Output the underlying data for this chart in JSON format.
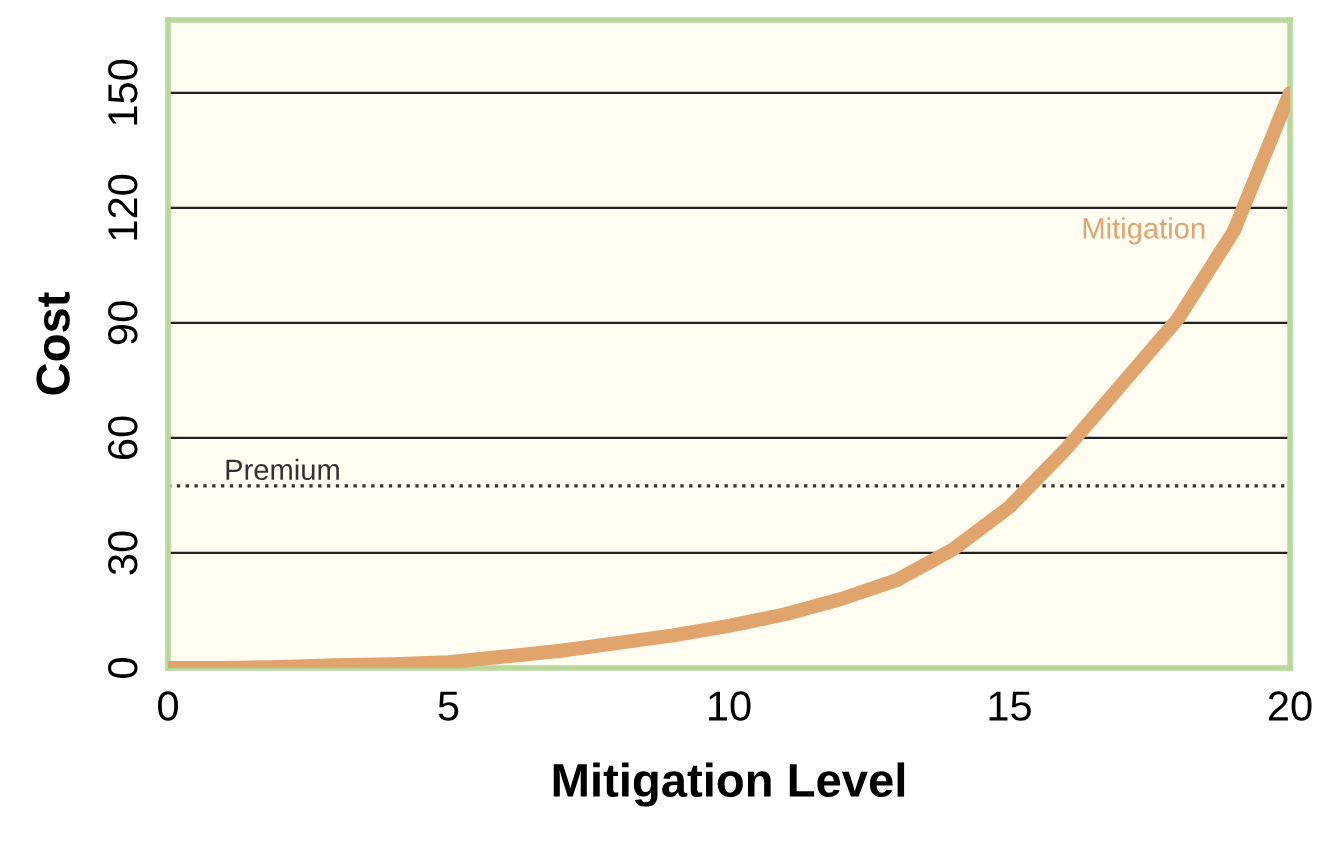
{
  "chart_data": {
    "type": "line",
    "xlabel": "Mitigation Level",
    "ylabel": "Cost",
    "x": [
      0,
      1,
      2,
      3,
      4,
      5,
      6,
      7,
      8,
      9,
      10,
      11,
      12,
      13,
      14,
      15,
      16,
      17,
      18,
      19,
      20
    ],
    "series": [
      {
        "name": "Mitigation",
        "color": "#e0a46c",
        "values": [
          0,
          0,
          0.3,
          0.7,
          1,
          1.5,
          3,
          4.5,
          6.5,
          8.5,
          11,
          14,
          18,
          23,
          31,
          42,
          57,
          74,
          91,
          114,
          150
        ]
      }
    ],
    "xlim": [
      0,
      20
    ],
    "xticks": [
      0,
      5,
      10,
      15,
      20
    ],
    "ylim": [
      0,
      169
    ],
    "yticks": [
      0,
      30,
      60,
      90,
      120,
      150
    ],
    "grid": "y",
    "marker": "none",
    "line_style": "solid",
    "ref_lines": [
      {
        "axis": "y",
        "value": 47.5,
        "label": "Premium",
        "color": "#333333",
        "line_style": "dotted"
      }
    ]
  }
}
